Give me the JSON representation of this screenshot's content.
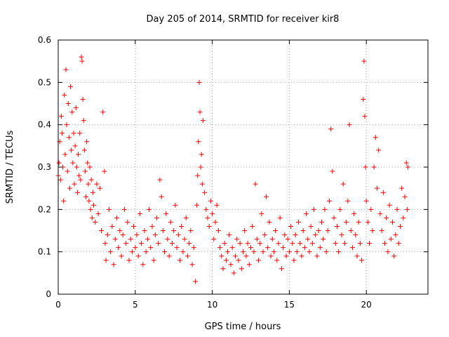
{
  "chart_data": {
    "type": "scatter",
    "title": "Day 205 of 2014, SRMTID for receiver kir8",
    "xlabel": "GPS time / hours",
    "ylabel": "SRMTID / TECUs",
    "xlim": [
      0,
      24
    ],
    "ylim": [
      0,
      0.6
    ],
    "xticks": [
      0,
      5,
      10,
      15,
      20
    ],
    "yticks": [
      0,
      0.1,
      0.2,
      0.3,
      0.4,
      0.5,
      0.6
    ],
    "xtick_labels": [
      "0",
      "5",
      "10",
      "15",
      "20"
    ],
    "ytick_labels": [
      "0",
      "0.1",
      "0.2",
      "0.3",
      "0.4",
      "0.5",
      "0.6"
    ],
    "grid": true,
    "marker": "+",
    "color": "#ff0000",
    "series": [
      {
        "name": "SRMTID",
        "points": [
          [
            0.0,
            0.28
          ],
          [
            0.05,
            0.31
          ],
          [
            0.1,
            0.36
          ],
          [
            0.15,
            0.27
          ],
          [
            0.2,
            0.42
          ],
          [
            0.25,
            0.38
          ],
          [
            0.3,
            0.3
          ],
          [
            0.35,
            0.22
          ],
          [
            0.4,
            0.47
          ],
          [
            0.45,
            0.33
          ],
          [
            0.5,
            0.53
          ],
          [
            0.55,
            0.4
          ],
          [
            0.6,
            0.29
          ],
          [
            0.65,
            0.45
          ],
          [
            0.7,
            0.37
          ],
          [
            0.75,
            0.25
          ],
          [
            0.8,
            0.49
          ],
          [
            0.85,
            0.34
          ],
          [
            0.9,
            0.43
          ],
          [
            0.95,
            0.31
          ],
          [
            1.0,
            0.38
          ],
          [
            1.05,
            0.26
          ],
          [
            1.1,
            0.35
          ],
          [
            1.15,
            0.44
          ],
          [
            1.2,
            0.3
          ],
          [
            1.25,
            0.24
          ],
          [
            1.3,
            0.33
          ],
          [
            1.35,
            0.28
          ],
          [
            1.4,
            0.38
          ],
          [
            1.45,
            0.27
          ],
          [
            1.5,
            0.56
          ],
          [
            1.55,
            0.55
          ],
          [
            1.6,
            0.46
          ],
          [
            1.65,
            0.41
          ],
          [
            1.7,
            0.34
          ],
          [
            1.75,
            0.29
          ],
          [
            1.8,
            0.23
          ],
          [
            1.85,
            0.36
          ],
          [
            1.9,
            0.31
          ],
          [
            1.95,
            0.26
          ],
          [
            2.0,
            0.22
          ],
          [
            2.05,
            0.3
          ],
          [
            2.1,
            0.2
          ],
          [
            2.15,
            0.27
          ],
          [
            2.2,
            0.18
          ],
          [
            2.25,
            0.24
          ],
          [
            2.3,
            0.21
          ],
          [
            2.4,
            0.17
          ],
          [
            2.5,
            0.26
          ],
          [
            2.6,
            0.19
          ],
          [
            2.7,
            0.25
          ],
          [
            2.8,
            0.15
          ],
          [
            2.9,
            0.43
          ],
          [
            3.0,
            0.29
          ],
          [
            3.05,
            0.12
          ],
          [
            3.1,
            0.08
          ],
          [
            3.2,
            0.14
          ],
          [
            3.3,
            0.2
          ],
          [
            3.4,
            0.1
          ],
          [
            3.5,
            0.16
          ],
          [
            3.6,
            0.07
          ],
          [
            3.7,
            0.13
          ],
          [
            3.8,
            0.18
          ],
          [
            3.9,
            0.11
          ],
          [
            4.0,
            0.15
          ],
          [
            4.1,
            0.09
          ],
          [
            4.2,
            0.14
          ],
          [
            4.3,
            0.2
          ],
          [
            4.4,
            0.12
          ],
          [
            4.5,
            0.17
          ],
          [
            4.6,
            0.08
          ],
          [
            4.7,
            0.13
          ],
          [
            4.8,
            0.1
          ],
          [
            4.9,
            0.16
          ],
          [
            5.0,
            0.11
          ],
          [
            5.1,
            0.14
          ],
          [
            5.2,
            0.09
          ],
          [
            5.3,
            0.19
          ],
          [
            5.4,
            0.12
          ],
          [
            5.5,
            0.07
          ],
          [
            5.6,
            0.15
          ],
          [
            5.7,
            0.1
          ],
          [
            5.8,
            0.13
          ],
          [
            5.9,
            0.2
          ],
          [
            6.0,
            0.11
          ],
          [
            6.1,
            0.16
          ],
          [
            6.2,
            0.08
          ],
          [
            6.3,
            0.14
          ],
          [
            6.4,
            0.18
          ],
          [
            6.5,
            0.12
          ],
          [
            6.6,
            0.27
          ],
          [
            6.7,
            0.23
          ],
          [
            6.8,
            0.15
          ],
          [
            6.9,
            0.1
          ],
          [
            7.0,
            0.19
          ],
          [
            7.1,
            0.13
          ],
          [
            7.2,
            0.09
          ],
          [
            7.3,
            0.17
          ],
          [
            7.4,
            0.12
          ],
          [
            7.5,
            0.15
          ],
          [
            7.6,
            0.21
          ],
          [
            7.7,
            0.11
          ],
          [
            7.8,
            0.14
          ],
          [
            7.9,
            0.08
          ],
          [
            8.0,
            0.16
          ],
          [
            8.1,
            0.1
          ],
          [
            8.2,
            0.13
          ],
          [
            8.3,
            0.18
          ],
          [
            8.4,
            0.09
          ],
          [
            8.5,
            0.12
          ],
          [
            8.6,
            0.15
          ],
          [
            8.7,
            0.07
          ],
          [
            8.8,
            0.11
          ],
          [
            8.9,
            0.03
          ],
          [
            9.0,
            0.21
          ],
          [
            9.05,
            0.28
          ],
          [
            9.1,
            0.36
          ],
          [
            9.15,
            0.5
          ],
          [
            9.2,
            0.43
          ],
          [
            9.25,
            0.3
          ],
          [
            9.3,
            0.33
          ],
          [
            9.35,
            0.26
          ],
          [
            9.4,
            0.41
          ],
          [
            9.5,
            0.24
          ],
          [
            9.6,
            0.2
          ],
          [
            9.7,
            0.18
          ],
          [
            9.8,
            0.16
          ],
          [
            9.9,
            0.22
          ],
          [
            10.0,
            0.19
          ],
          [
            10.1,
            0.13
          ],
          [
            10.2,
            0.17
          ],
          [
            10.3,
            0.21
          ],
          [
            10.4,
            0.15
          ],
          [
            10.5,
            0.11
          ],
          [
            10.6,
            0.09
          ],
          [
            10.7,
            0.06
          ],
          [
            10.8,
            0.12
          ],
          [
            10.9,
            0.08
          ],
          [
            11.0,
            0.1
          ],
          [
            11.1,
            0.14
          ],
          [
            11.2,
            0.07
          ],
          [
            11.3,
            0.11
          ],
          [
            11.4,
            0.05
          ],
          [
            11.5,
            0.09
          ],
          [
            11.6,
            0.13
          ],
          [
            11.7,
            0.08
          ],
          [
            11.8,
            0.12
          ],
          [
            11.9,
            0.06
          ],
          [
            12.0,
            0.1
          ],
          [
            12.1,
            0.15
          ],
          [
            12.2,
            0.09
          ],
          [
            12.3,
            0.12
          ],
          [
            12.4,
            0.07
          ],
          [
            12.5,
            0.11
          ],
          [
            12.6,
            0.16
          ],
          [
            12.7,
            0.1
          ],
          [
            12.8,
            0.26
          ],
          [
            12.9,
            0.13
          ],
          [
            13.0,
            0.08
          ],
          [
            13.1,
            0.12
          ],
          [
            13.2,
            0.19
          ],
          [
            13.3,
            0.1
          ],
          [
            13.4,
            0.14
          ],
          [
            13.5,
            0.23
          ],
          [
            13.6,
            0.11
          ],
          [
            13.7,
            0.17
          ],
          [
            13.8,
            0.09
          ],
          [
            13.9,
            0.13
          ],
          [
            14.0,
            0.1
          ],
          [
            14.1,
            0.15
          ],
          [
            14.2,
            0.08
          ],
          [
            14.3,
            0.12
          ],
          [
            14.4,
            0.18
          ],
          [
            14.5,
            0.06
          ],
          [
            14.6,
            0.11
          ],
          [
            14.7,
            0.14
          ],
          [
            14.8,
            0.09
          ],
          [
            14.9,
            0.13
          ],
          [
            15.0,
            0.1
          ],
          [
            15.1,
            0.16
          ],
          [
            15.2,
            0.12
          ],
          [
            15.3,
            0.08
          ],
          [
            15.4,
            0.14
          ],
          [
            15.5,
            0.1
          ],
          [
            15.6,
            0.17
          ],
          [
            15.7,
            0.12
          ],
          [
            15.8,
            0.09
          ],
          [
            15.9,
            0.15
          ],
          [
            16.0,
            0.11
          ],
          [
            16.1,
            0.19
          ],
          [
            16.2,
            0.13
          ],
          [
            16.3,
            0.1
          ],
          [
            16.4,
            0.16
          ],
          [
            16.5,
            0.12
          ],
          [
            16.6,
            0.2
          ],
          [
            16.7,
            0.14
          ],
          [
            16.8,
            0.09
          ],
          [
            16.9,
            0.15
          ],
          [
            17.0,
            0.11
          ],
          [
            17.1,
            0.17
          ],
          [
            17.2,
            0.13
          ],
          [
            17.3,
            0.2
          ],
          [
            17.4,
            0.1
          ],
          [
            17.5,
            0.15
          ],
          [
            17.6,
            0.22
          ],
          [
            17.7,
            0.39
          ],
          [
            17.8,
            0.29
          ],
          [
            17.9,
            0.18
          ],
          [
            18.0,
            0.12
          ],
          [
            18.1,
            0.16
          ],
          [
            18.2,
            0.1
          ],
          [
            18.3,
            0.2
          ],
          [
            18.4,
            0.14
          ],
          [
            18.5,
            0.26
          ],
          [
            18.6,
            0.12
          ],
          [
            18.7,
            0.17
          ],
          [
            18.8,
            0.22
          ],
          [
            18.9,
            0.4
          ],
          [
            19.0,
            0.15
          ],
          [
            19.1,
            0.11
          ],
          [
            19.2,
            0.19
          ],
          [
            19.3,
            0.14
          ],
          [
            19.4,
            0.09
          ],
          [
            19.5,
            0.17
          ],
          [
            19.6,
            0.12
          ],
          [
            19.7,
            0.08
          ],
          [
            19.8,
            0.46
          ],
          [
            19.85,
            0.55
          ],
          [
            19.9,
            0.42
          ],
          [
            19.95,
            0.3
          ],
          [
            20.0,
            0.22
          ],
          [
            20.1,
            0.17
          ],
          [
            20.2,
            0.12
          ],
          [
            20.3,
            0.2
          ],
          [
            20.4,
            0.15
          ],
          [
            20.5,
            0.3
          ],
          [
            20.6,
            0.37
          ],
          [
            20.7,
            0.25
          ],
          [
            20.8,
            0.34
          ],
          [
            20.9,
            0.19
          ],
          [
            21.0,
            0.15
          ],
          [
            21.1,
            0.24
          ],
          [
            21.2,
            0.12
          ],
          [
            21.3,
            0.18
          ],
          [
            21.4,
            0.1
          ],
          [
            21.5,
            0.21
          ],
          [
            21.6,
            0.13
          ],
          [
            21.7,
            0.17
          ],
          [
            21.8,
            0.09
          ],
          [
            21.9,
            0.14
          ],
          [
            22.0,
            0.2
          ],
          [
            22.1,
            0.12
          ],
          [
            22.2,
            0.16
          ],
          [
            22.3,
            0.25
          ],
          [
            22.4,
            0.18
          ],
          [
            22.5,
            0.23
          ],
          [
            22.6,
            0.31
          ],
          [
            22.65,
            0.2
          ],
          [
            22.7,
            0.3
          ]
        ]
      }
    ]
  }
}
